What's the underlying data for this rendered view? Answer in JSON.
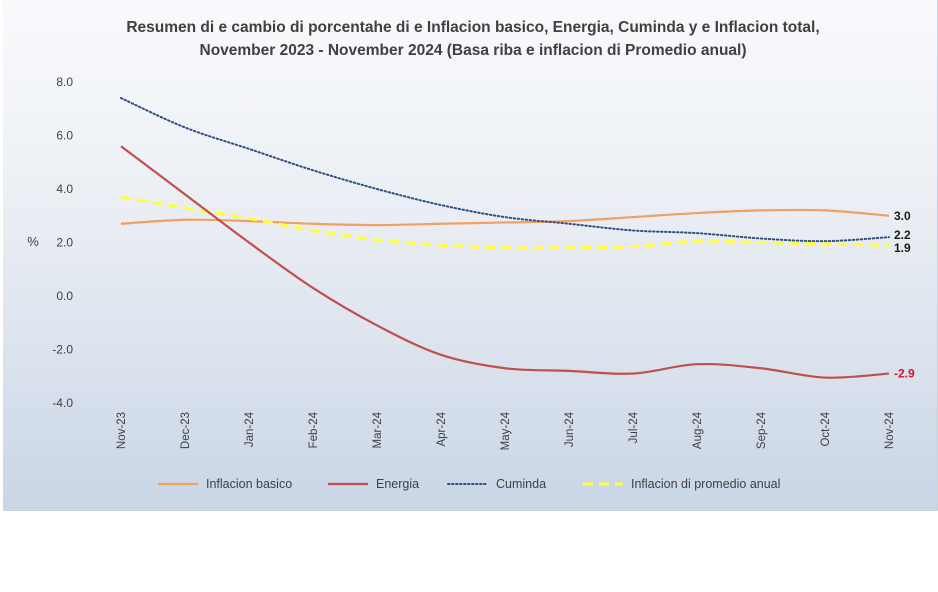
{
  "chart_data": {
    "type": "line",
    "title": "Resumen di e cambio di porcentahe di e Inflacion basico, Energia, Cuminda y e Inflacion total,",
    "subtitle": "November 2023 - November 2024 (Basa riba e inflacion di Promedio anual)",
    "xlabel": "",
    "ylabel": "%",
    "ylim": [
      -4.0,
      8.0
    ],
    "y_ticks": [
      "8.0",
      "6.0",
      "4.0",
      "2.0",
      "0.0",
      "-2.0",
      "-4.0"
    ],
    "grid": false,
    "legend_position": "bottom",
    "x": [
      "Nov-23",
      "Dec-23",
      "Jan-24",
      "Feb-24",
      "Mar-24",
      "Apr-24",
      "May-24",
      "Jun-24",
      "Jul-24",
      "Aug-24",
      "Sep-24",
      "Oct-24",
      "Nov-24"
    ],
    "series": [
      {
        "name": "Inflacion basico",
        "color": "#f0a060",
        "style": "solid",
        "values": [
          2.7,
          2.85,
          2.8,
          2.7,
          2.65,
          2.7,
          2.75,
          2.8,
          2.95,
          3.1,
          3.2,
          3.2,
          3.0
        ],
        "end_label": "3.0",
        "end_label_color": "#1a1a1a"
      },
      {
        "name": "Energia",
        "color": "#c0504d",
        "style": "solid",
        "values": [
          5.6,
          3.8,
          2.0,
          0.3,
          -1.1,
          -2.2,
          -2.7,
          -2.8,
          -2.9,
          -2.55,
          -2.7,
          -3.05,
          -2.9
        ],
        "end_label": "-2.9",
        "end_label_color": "#e0102a"
      },
      {
        "name": "Cuminda",
        "color": "#2f4f7f",
        "style": "dotted",
        "values": [
          7.4,
          6.3,
          5.5,
          4.7,
          4.0,
          3.4,
          2.95,
          2.7,
          2.45,
          2.35,
          2.15,
          2.05,
          2.2
        ],
        "end_label": "2.2",
        "end_label_color": "#1a1a1a"
      },
      {
        "name": "Inflacion di promedio anual",
        "color": "#ffff40",
        "style": "dashed",
        "values": [
          3.7,
          3.3,
          2.9,
          2.45,
          2.1,
          1.9,
          1.8,
          1.8,
          1.85,
          2.05,
          2.0,
          1.95,
          1.9
        ],
        "end_label": "1.9",
        "end_label_color": "#1a1a1a"
      }
    ]
  }
}
